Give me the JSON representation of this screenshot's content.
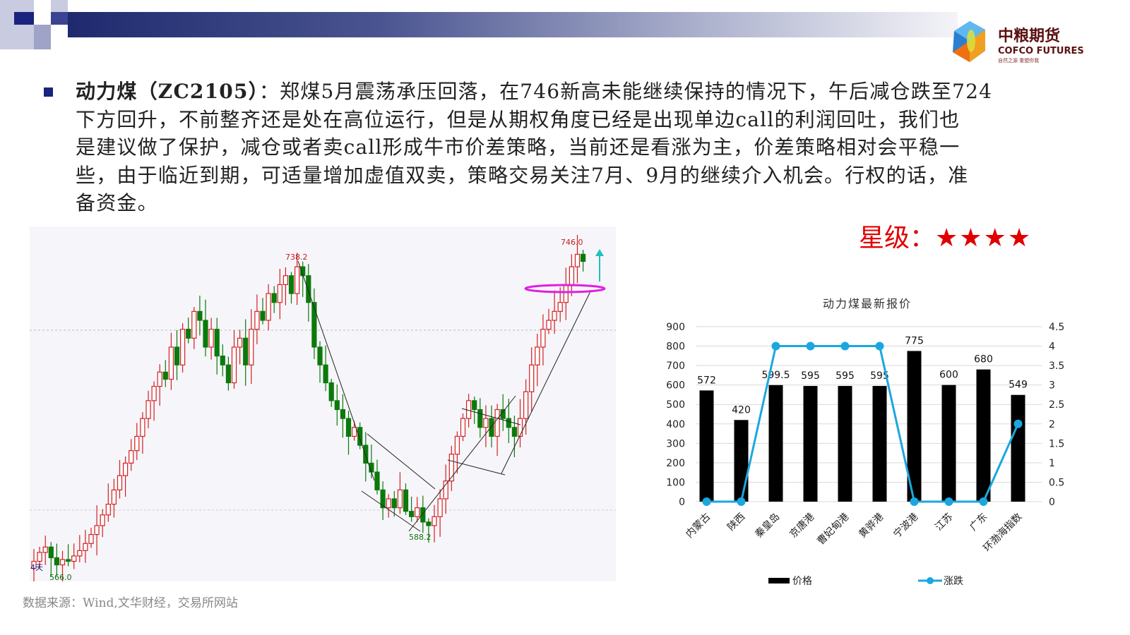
{
  "paragraph": {
    "bold": "动力煤（ZC2105）",
    "lines": [
      "：郑煤5月震荡承压回落，在746新高未能继续保持的情况下，午后减仓跌至724",
      "下方回升，不前整齐还是处在高位运行，但是从期权角度已经是出现单边call的利润回吐，我们也",
      "是建议做了保护，减仓或者卖call形成牛市价差策略，当前还是看涨为主，价差策略相对会平稳一",
      "些，由于临近到期，可适量增加虚值双卖，策略交易关注7月、9月的继续介入机会。行权的话，准",
      "备资金。"
    ]
  },
  "rating": {
    "label": "星级：",
    "stars": "★★★★",
    "count": 4,
    "color": "#e00000"
  },
  "logo": {
    "name_cn": "中粮期货",
    "name_en": "COFCO FUTURES",
    "slogan": "自然之源 重塑你我"
  },
  "source": "数据来源：Wind,文华财经，交易所网站",
  "chart_data": [
    {
      "type": "candlestick",
      "annotations": {
        "high1": "738.2",
        "high2": "746.0",
        "low1": "588.2",
        "low0": "566.0",
        "corner": "4天"
      },
      "closes": [
        570,
        575,
        578,
        572,
        568,
        571,
        570,
        573,
        576,
        580,
        585,
        590,
        596,
        602,
        610,
        618,
        625,
        632,
        640,
        650,
        660,
        668,
        676,
        672,
        690,
        680,
        700,
        695,
        710,
        705,
        690,
        700,
        685,
        680,
        670,
        690,
        695,
        680,
        700,
        710,
        705,
        720,
        715,
        725,
        730,
        720,
        735,
        730,
        715,
        690,
        680,
        670,
        660,
        655,
        650,
        640,
        645,
        635,
        625,
        620,
        610,
        600,
        605,
        600,
        610,
        598,
        595,
        600,
        592,
        590,
        595,
        605,
        615,
        630,
        640,
        650,
        660,
        655,
        645,
        650,
        640,
        655,
        650,
        645,
        640,
        650,
        665,
        680,
        690,
        700,
        705,
        710,
        715,
        725,
        735,
        742,
        738
      ],
      "colors": {
        "up": "#d42020",
        "down": "#0a7a0a",
        "circle": "#e020e0",
        "arrow": "#20c0c0"
      }
    },
    {
      "type": "bar+line",
      "title": "动力煤最新报价",
      "categories": [
        "内蒙古",
        "陕西",
        "秦皇岛",
        "京唐港",
        "曹妃甸港",
        "黄骅港",
        "宁波港",
        "江苏",
        "广东",
        "环渤海指数"
      ],
      "series": [
        {
          "name": "价格",
          "type": "bar",
          "axis": "left",
          "values": [
            572,
            420,
            599.5,
            595,
            595,
            595,
            775,
            600,
            680,
            549
          ],
          "labels": [
            "572",
            "420",
            "599.5",
            "595",
            "595",
            "595",
            "775",
            "600",
            "680",
            "549"
          ],
          "color": "#000000"
        },
        {
          "name": "涨跌",
          "type": "line",
          "axis": "right",
          "values": [
            0,
            0,
            4,
            4,
            4,
            4,
            0,
            0,
            0,
            2
          ],
          "color": "#1aa7e0"
        }
      ],
      "ylim": [
        0,
        900
      ],
      "yticks": [
        "0",
        "100",
        "200",
        "300",
        "400",
        "500",
        "600",
        "700",
        "800",
        "900"
      ],
      "y2lim": [
        0,
        4.5
      ],
      "y2ticks": [
        "0",
        "0.5",
        "1",
        "1.5",
        "2",
        "2.5",
        "3",
        "3.5",
        "4",
        "4.5"
      ],
      "grid": true,
      "legend": "bottom"
    }
  ]
}
